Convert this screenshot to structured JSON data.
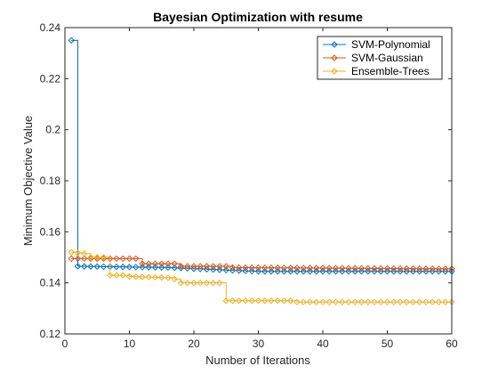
{
  "chart_data": {
    "type": "line",
    "title": "Bayesian Optimization with resume",
    "xlabel": "Number of Iterations",
    "ylabel": "Minimum Objective Value",
    "xlim": [
      0,
      60
    ],
    "ylim": [
      0.12,
      0.24
    ],
    "xticks": [
      0,
      10,
      20,
      30,
      40,
      50,
      60
    ],
    "yticks": [
      0.12,
      0.14,
      0.16,
      0.18,
      0.2,
      0.22,
      0.24
    ],
    "xtick_labels": [
      "0",
      "10",
      "20",
      "30",
      "40",
      "50",
      "60"
    ],
    "ytick_labels": [
      "0.12",
      "0.14",
      "0.16",
      "0.18",
      "0.2",
      "0.22",
      "0.24"
    ],
    "grid": false,
    "legend_position": "top-right",
    "marker": "diamond",
    "series": [
      {
        "name": "SVM-Polynomial",
        "color": "#0072BD",
        "segments": [
          [
            1,
            0.235
          ],
          [
            2,
            0.1465
          ],
          [
            16,
            0.146
          ],
          [
            25,
            0.145
          ],
          [
            30,
            0.1445
          ],
          [
            60,
            0.1445
          ]
        ]
      },
      {
        "name": "SVM-Gaussian",
        "color": "#D95319",
        "segments": [
          [
            1,
            0.1495
          ],
          [
            11,
            0.1495
          ],
          [
            12,
            0.1475
          ],
          [
            17,
            0.1475
          ],
          [
            18,
            0.1465
          ],
          [
            25,
            0.1465
          ],
          [
            26,
            0.146
          ],
          [
            60,
            0.1455
          ]
        ]
      },
      {
        "name": "Ensemble-Trees",
        "color": "#EDB120",
        "segments": [
          [
            1,
            0.152
          ],
          [
            3,
            0.1515
          ],
          [
            4,
            0.15
          ],
          [
            6,
            0.15
          ],
          [
            7,
            0.143
          ],
          [
            9,
            0.143
          ],
          [
            10,
            0.1425
          ],
          [
            16,
            0.142
          ],
          [
            17,
            0.1415
          ],
          [
            18,
            0.14
          ],
          [
            24,
            0.14
          ],
          [
            25,
            0.133
          ],
          [
            35,
            0.133
          ],
          [
            36,
            0.1325
          ],
          [
            60,
            0.1325
          ]
        ]
      }
    ]
  }
}
